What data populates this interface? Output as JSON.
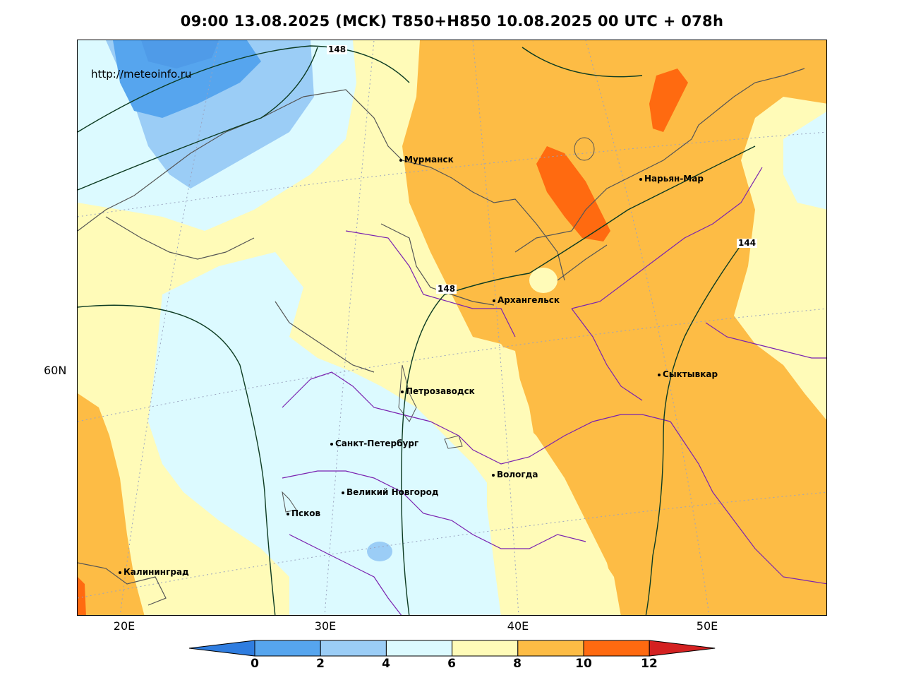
{
  "title": "09:00 13.08.2025 (MCK) T850+H850 10.08.2025 00 UTC + 078h",
  "source_url": "http://meteoinfo.ru",
  "latitude_labels": [
    "60N"
  ],
  "longitude_labels": [
    "20E",
    "30E",
    "40E",
    "50E"
  ],
  "contour_labels": [
    "148",
    "148",
    "144"
  ],
  "cities": [
    {
      "name": "Мурманск"
    },
    {
      "name": "Нарьян-Мар"
    },
    {
      "name": "Архангельск"
    },
    {
      "name": "Сыктывкар"
    },
    {
      "name": "Петрозаводск"
    },
    {
      "name": "Санкт-Петербург"
    },
    {
      "name": "Вологда"
    },
    {
      "name": "Великий Новгород"
    },
    {
      "name": "Псков"
    },
    {
      "name": "Калининград"
    }
  ],
  "legend": {
    "ticks": [
      "0",
      "2",
      "4",
      "6",
      "8",
      "10",
      "12"
    ],
    "bins": [
      {
        "range": "<0",
        "color": "#2f7de0"
      },
      {
        "range": "0-2",
        "color": "#56a5ee"
      },
      {
        "range": "2-4",
        "color": "#9bcdf6"
      },
      {
        "range": "4-6",
        "color": "#dcfaff"
      },
      {
        "range": "6-8",
        "color": "#fffbb8"
      },
      {
        "range": "8-10",
        "color": "#fdbc45"
      },
      {
        "range": "10-12",
        "color": "#ff6a10"
      },
      {
        "range": ">12",
        "color": "#d42121"
      }
    ]
  },
  "colors": {
    "land_border": "#555555",
    "admin_border": "#7a22b0",
    "contour_line": "#0c3b22",
    "grid": "#9aa3c0"
  }
}
